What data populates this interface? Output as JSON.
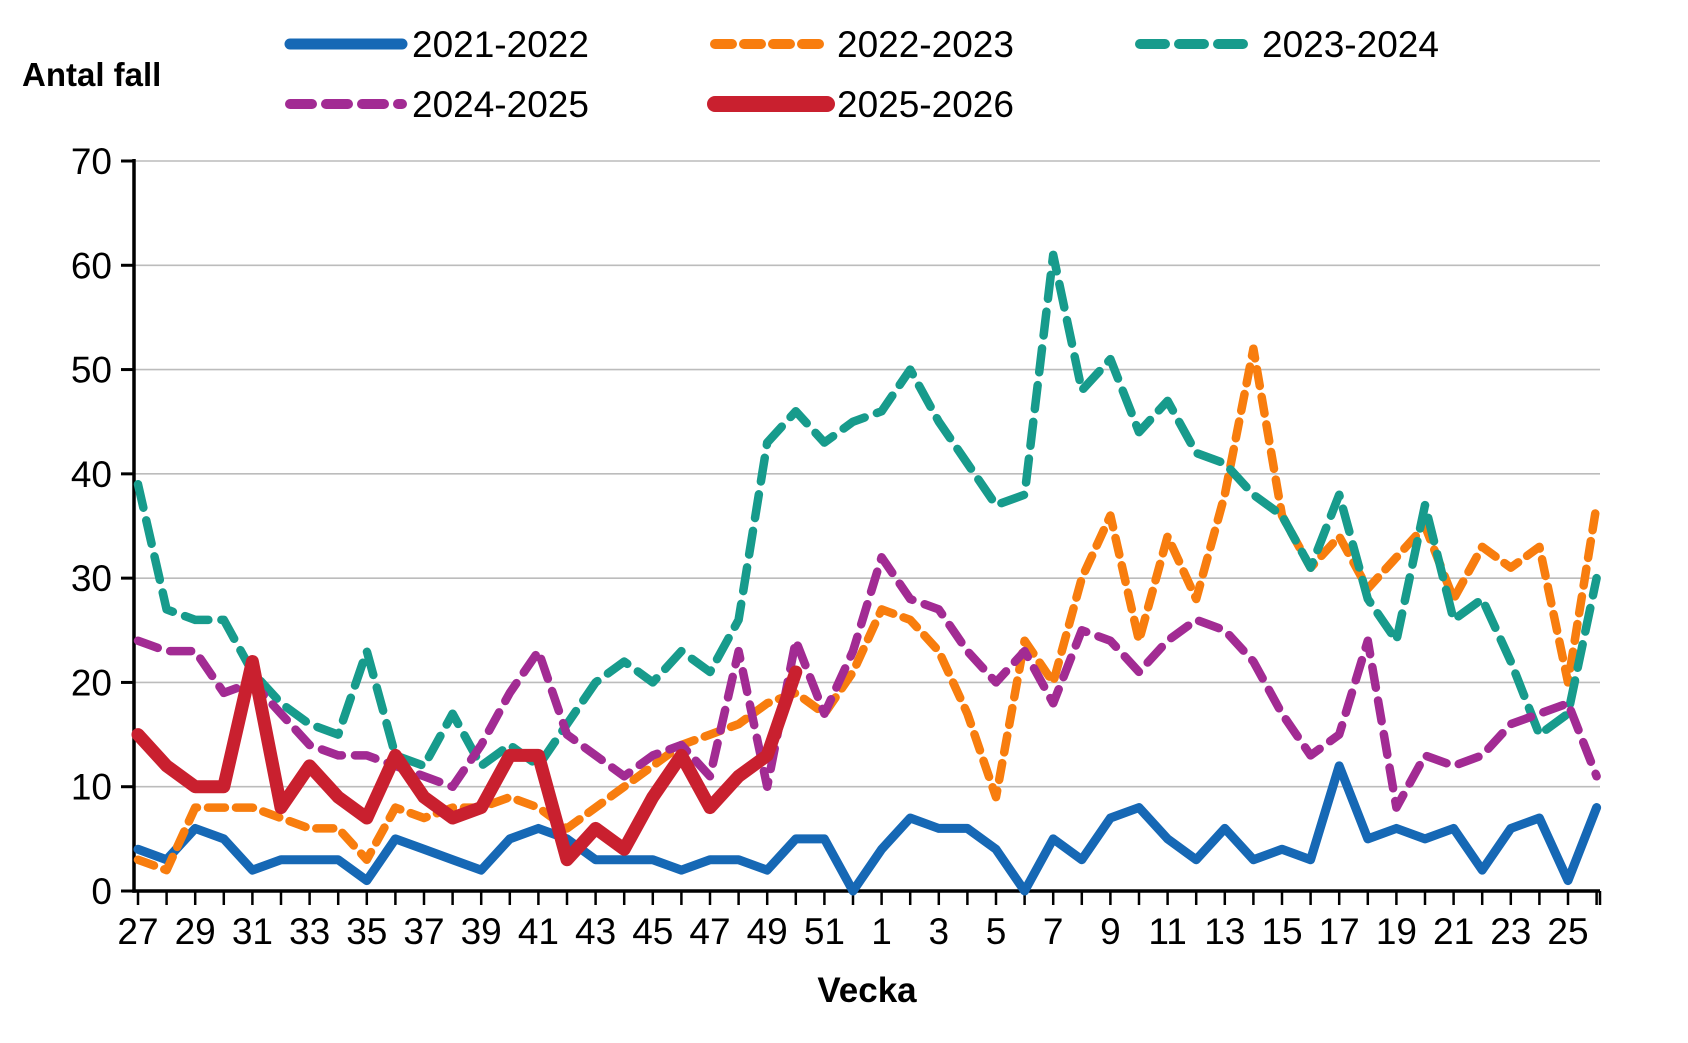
{
  "chart_data": {
    "type": "line",
    "title": "Antal fall",
    "xlabel": "Vecka",
    "ylabel": "Antal fall",
    "ylim": [
      0,
      70
    ],
    "ytick_interval": 10,
    "x_label_step": 2,
    "grid": "horizontal-gray",
    "legend_position": "top",
    "categories": [
      "27",
      "28",
      "29",
      "30",
      "31",
      "32",
      "33",
      "34",
      "35",
      "36",
      "37",
      "38",
      "39",
      "40",
      "41",
      "42",
      "43",
      "44",
      "45",
      "46",
      "47",
      "48",
      "49",
      "50",
      "51",
      "52",
      "1",
      "2",
      "3",
      "4",
      "5",
      "6",
      "7",
      "8",
      "9",
      "10",
      "11",
      "12",
      "13",
      "14",
      "15",
      "16",
      "17",
      "18",
      "19",
      "20",
      "21",
      "22",
      "23",
      "24",
      "25",
      "26"
    ],
    "series": [
      {
        "name": "2021-2022",
        "color": "#1668B5",
        "style": "solid",
        "values": [
          4,
          3,
          6,
          5,
          2,
          3,
          3,
          3,
          1,
          5,
          4,
          3,
          2,
          5,
          6,
          5,
          3,
          3,
          3,
          2,
          3,
          3,
          2,
          5,
          5,
          0,
          4,
          7,
          6,
          6,
          4,
          0,
          5,
          3,
          7,
          8,
          5,
          3,
          6,
          3,
          4,
          3,
          12,
          5,
          6,
          5,
          6,
          2,
          6,
          7,
          1,
          8
        ]
      },
      {
        "name": "2022-2023",
        "color": "#F87D0E",
        "style": "dashed",
        "values": [
          3,
          2,
          8,
          8,
          8,
          7,
          6,
          6,
          3,
          8,
          7,
          8,
          8,
          9,
          8,
          6,
          8,
          10,
          12,
          14,
          15,
          16,
          18,
          19,
          17,
          21,
          27,
          26,
          23,
          17,
          9,
          24,
          20,
          30,
          36,
          24,
          34,
          28,
          38,
          52,
          36,
          31,
          34,
          29,
          32,
          35,
          28,
          33,
          31,
          33,
          20,
          37
        ]
      },
      {
        "name": "2023-2024",
        "color": "#179B8C",
        "style": "dashed",
        "values": [
          39,
          27,
          26,
          26,
          21,
          18,
          16,
          15,
          23,
          13,
          12,
          17,
          12,
          14,
          12,
          16,
          20,
          22,
          20,
          23,
          21,
          26,
          43,
          46,
          43,
          45,
          46,
          50,
          45,
          41,
          37,
          38,
          61,
          48,
          51,
          44,
          47,
          42,
          41,
          38,
          36,
          31,
          38,
          28,
          24,
          37,
          26,
          28,
          22,
          15,
          17,
          30
        ]
      },
      {
        "name": "2024-2025",
        "color": "#A22B93",
        "style": "dashed",
        "values": [
          24,
          23,
          23,
          19,
          20,
          17,
          14,
          13,
          13,
          12,
          11,
          10,
          14,
          19,
          23,
          15,
          13,
          11,
          13,
          14,
          11,
          23,
          10,
          24,
          17,
          23,
          32,
          28,
          27,
          23,
          20,
          23,
          18,
          25,
          24,
          21,
          24,
          26,
          25,
          22,
          17,
          13,
          15,
          24,
          8,
          13,
          12,
          13,
          16,
          17,
          18,
          11
        ]
      },
      {
        "name": "2025-2026",
        "color": "#C9202F",
        "style": "solid-thick",
        "values": [
          15,
          12,
          10,
          10,
          22,
          8,
          12,
          9,
          7,
          13,
          9,
          7,
          8,
          13,
          13,
          3,
          6,
          4,
          9,
          13,
          8,
          11,
          13,
          21
        ]
      }
    ]
  }
}
